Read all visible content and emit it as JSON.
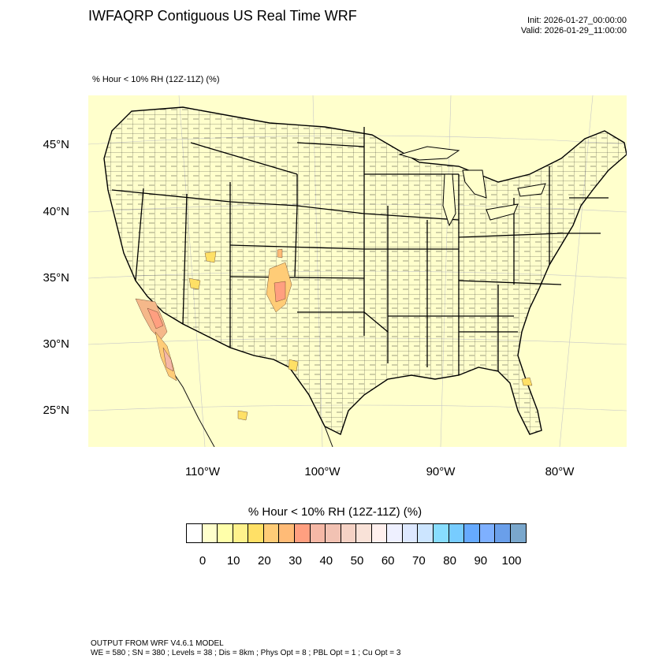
{
  "header": {
    "title": "IWFAQRP Contiguous US Real Time WRF",
    "init": "Init: 2026-01-27_00:00:00",
    "valid": "Valid: 2026-01-29_11:00:00"
  },
  "map": {
    "subtitle": "% Hour < 10% RH (12Z-11Z)   (%)",
    "background_color": "#ffffcc",
    "lat_labels": [
      "45°N",
      "40°N",
      "35°N",
      "30°N",
      "25°N"
    ],
    "lon_labels": [
      "110°W",
      "100°W",
      "90°W",
      "80°W"
    ]
  },
  "colorbar": {
    "title": "% Hour < 10% RH (12Z-11Z)  (%)",
    "colors": [
      "#ffffff",
      "#ffffcc",
      "#ffffaa",
      "#fff28c",
      "#ffe066",
      "#ffcc77",
      "#ffbb77",
      "#ff9f80",
      "#f5b8a6",
      "#f2c2b3",
      "#f5d2c5",
      "#f9e2d8",
      "#fff0ee",
      "#eef0ff",
      "#dde8ff",
      "#cce5ff",
      "#88ddff",
      "#77ccff",
      "#66aaff",
      "#7eb0ff",
      "#6a9fea",
      "#7aa7cc"
    ],
    "ticks": [
      "0",
      "10",
      "20",
      "30",
      "40",
      "50",
      "60",
      "70",
      "80",
      "90",
      "100"
    ]
  },
  "footer": {
    "line1": "OUTPUT FROM WRF V4.6.1 MODEL",
    "line2": "WE = 580 ; SN = 380 ; Levels = 38 ; Dis = 8km ; Phys Opt = 8 ; PBL Opt = 1 ; Cu Opt = 3"
  }
}
